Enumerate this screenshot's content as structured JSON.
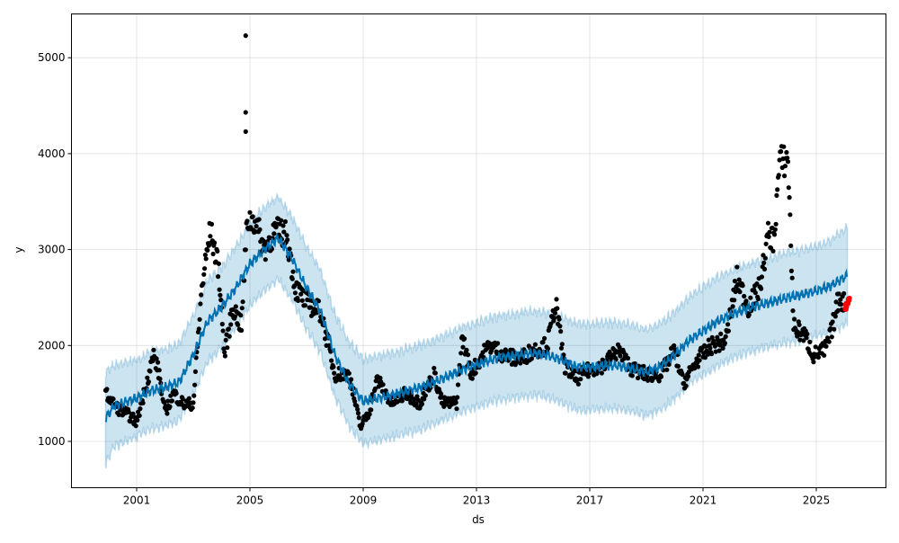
{
  "chart_data": {
    "type": "line",
    "title": "",
    "xlabel": "ds",
    "ylabel": "y",
    "xlim": [
      1998.5,
      2027.2
    ],
    "ylim": [
      540,
      5480
    ],
    "grid": true,
    "x_ticks": [
      2001,
      2005,
      2009,
      2013,
      2017,
      2021,
      2025
    ],
    "x_tick_labels": [
      "2001",
      "2005",
      "2009",
      "2013",
      "2017",
      "2021",
      "2025"
    ],
    "y_ticks": [
      1000,
      2000,
      3000,
      4000,
      5000
    ],
    "y_tick_labels": [
      "1000",
      "2000",
      "3000",
      "4000",
      "5000"
    ],
    "colors": {
      "forecast": "#0072B2",
      "interval": "#0072B2",
      "observed": "#000000",
      "future": "#ff0000"
    },
    "forecast": {
      "name": "yhat",
      "x": [
        1999.9,
        2000.2,
        2001,
        2001.5,
        2002,
        2002.5,
        2003,
        2003.5,
        2004,
        2004.5,
        2005,
        2005.5,
        2006,
        2006.5,
        2007,
        2007.5,
        2008,
        2008.5,
        2009,
        2009.5,
        2010,
        2010.5,
        2011,
        2011.5,
        2012,
        2012.5,
        2013,
        2013.5,
        2014,
        2014.5,
        2015,
        2015.5,
        2016,
        2016.5,
        2017,
        2017.5,
        2018,
        2018.5,
        2019,
        2019.5,
        2020,
        2020.5,
        2021,
        2021.5,
        2022,
        2022.5,
        2023,
        2023.5,
        2024,
        2024.5,
        2025,
        2025.5,
        2026.1
      ],
      "y": [
        1240,
        1370,
        1450,
        1530,
        1560,
        1620,
        1900,
        2250,
        2400,
        2600,
        2850,
        3000,
        3120,
        2900,
        2600,
        2350,
        1900,
        1600,
        1420,
        1450,
        1480,
        1520,
        1560,
        1620,
        1680,
        1750,
        1800,
        1850,
        1880,
        1900,
        1920,
        1900,
        1850,
        1780,
        1770,
        1790,
        1790,
        1760,
        1720,
        1780,
        1900,
        2050,
        2150,
        2250,
        2320,
        2380,
        2420,
        2460,
        2500,
        2530,
        2570,
        2620,
        2730
      ],
      "interval_halfwidth": [
        480,
        420,
        400,
        400,
        400,
        400,
        410,
        420,
        420,
        420,
        430,
        430,
        430,
        430,
        430,
        430,
        430,
        440,
        440,
        440,
        440,
        440,
        440,
        440,
        440,
        440,
        440,
        440,
        440,
        440,
        440,
        440,
        450,
        450,
        450,
        450,
        450,
        450,
        450,
        450,
        450,
        450,
        460,
        460,
        460,
        460,
        460,
        460,
        470,
        470,
        470,
        480,
        500
      ]
    },
    "observed": {
      "name": "y",
      "x": [
        1999.9,
        2000.3,
        2000.7,
        2001.0,
        2001.3,
        2001.6,
        2001.8,
        2002.0,
        2002.3,
        2002.7,
        2003.0,
        2003.3,
        2003.6,
        2003.9,
        2004.1,
        2004.4,
        2004.7,
        2004.9,
        2005.2,
        2005.5,
        2005.9,
        2006.3,
        2006.6,
        2007.0,
        2007.5,
        2008.0,
        2008.5,
        2008.9,
        2009.2,
        2009.5,
        2010.0,
        2010.5,
        2011.0,
        2011.5,
        2011.8,
        2012.3,
        2012.5,
        2012.8,
        2013.2,
        2013.5,
        2014.0,
        2014.5,
        2015.0,
        2015.5,
        2015.8,
        2016.1,
        2016.5,
        2017.0,
        2017.5,
        2018.0,
        2018.5,
        2019.0,
        2019.5,
        2020.0,
        2020.3,
        2020.8,
        2021.3,
        2021.8,
        2022.2,
        2022.6,
        2023.0,
        2023.3,
        2023.5,
        2023.7,
        2024.0,
        2024.2,
        2024.6,
        2024.9,
        2025.3,
        2025.5,
        2025.8,
        2026.0
      ],
      "y": [
        1500,
        1350,
        1280,
        1200,
        1550,
        1900,
        1700,
        1300,
        1500,
        1380,
        1400,
        2600,
        3200,
        2800,
        1900,
        2400,
        2200,
        3300,
        3300,
        3000,
        3200,
        3150,
        2600,
        2450,
        2350,
        1700,
        1700,
        1150,
        1300,
        1650,
        1400,
        1500,
        1400,
        1700,
        1400,
        1400,
        2100,
        1700,
        1900,
        2000,
        1900,
        1850,
        1950,
        2000,
        2450,
        1800,
        1650,
        1750,
        1800,
        1950,
        1750,
        1700,
        1700,
        1950,
        1600,
        1850,
        2000,
        2050,
        2700,
        2400,
        2600,
        3150,
        3100,
        3900,
        3950,
        2200,
        2100,
        1900,
        1950,
        2100,
        2500,
        2450
      ],
      "outliers_x": [
        2004.85,
        2004.85,
        2004.85
      ],
      "outliers_y": [
        5230,
        4430,
        4230
      ]
    },
    "future_actuals": {
      "name": "y (future)",
      "x": [
        2026.02,
        2026.06,
        2026.1,
        2026.14
      ],
      "y": [
        2400,
        2430,
        2460,
        2480
      ]
    }
  }
}
